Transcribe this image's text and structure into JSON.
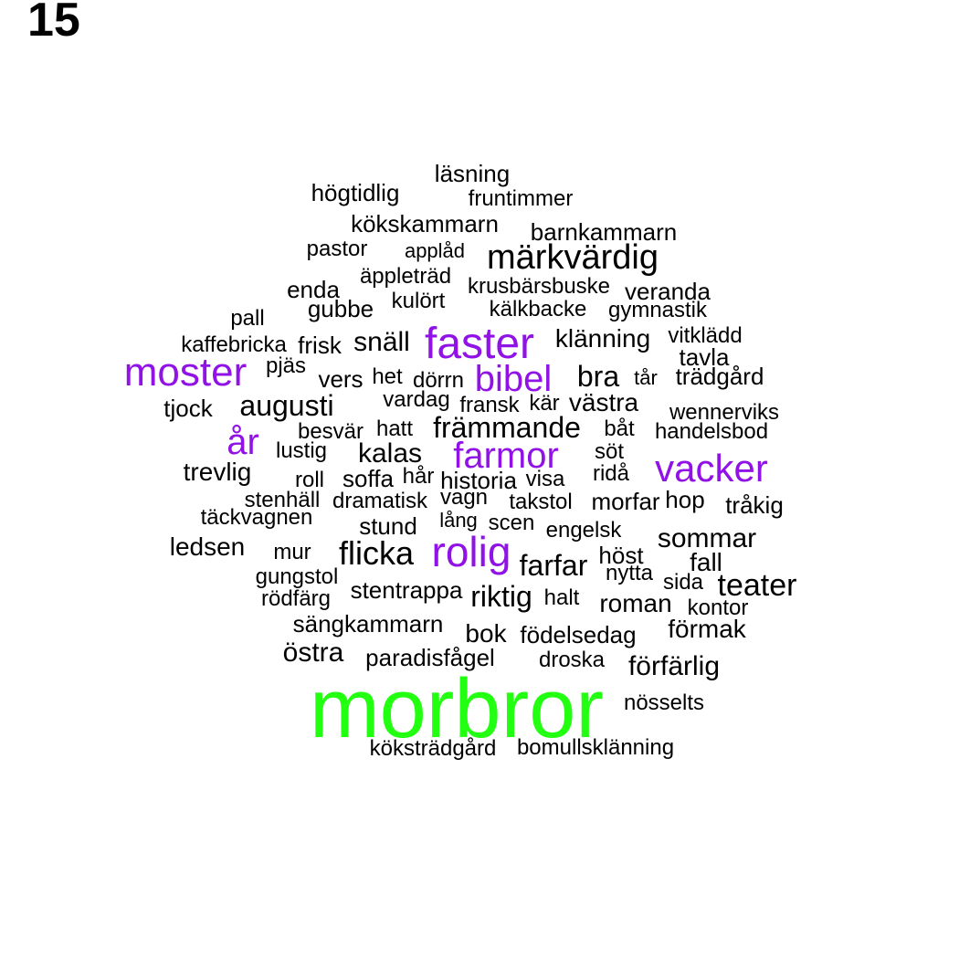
{
  "panel_label": "15",
  "colors": {
    "default": "#000000",
    "mid": "#9012e6",
    "top": "#22ff11"
  },
  "words": [
    {
      "text": "läsning",
      "level": "default"
    },
    {
      "text": "högtidlig",
      "level": "default"
    },
    {
      "text": "fruntimmer",
      "level": "default"
    },
    {
      "text": "kökskammarn",
      "level": "default"
    },
    {
      "text": "barnkammarn",
      "level": "default"
    },
    {
      "text": "pastor",
      "level": "default"
    },
    {
      "text": "applåd",
      "level": "default"
    },
    {
      "text": "märkvärdig",
      "level": "default"
    },
    {
      "text": "äppleträd",
      "level": "default"
    },
    {
      "text": "enda",
      "level": "default"
    },
    {
      "text": "krusbärsbuske",
      "level": "default"
    },
    {
      "text": "veranda",
      "level": "default"
    },
    {
      "text": "gubbe",
      "level": "default"
    },
    {
      "text": "kulört",
      "level": "default"
    },
    {
      "text": "kälkbacke",
      "level": "default"
    },
    {
      "text": "gymnastik",
      "level": "default"
    },
    {
      "text": "pall",
      "level": "default"
    },
    {
      "text": "faster",
      "level": "mid"
    },
    {
      "text": "klänning",
      "level": "default"
    },
    {
      "text": "vitklädd",
      "level": "default"
    },
    {
      "text": "kaffebricka",
      "level": "default"
    },
    {
      "text": "frisk",
      "level": "default"
    },
    {
      "text": "snäll",
      "level": "default"
    },
    {
      "text": "tavla",
      "level": "default"
    },
    {
      "text": "moster",
      "level": "mid"
    },
    {
      "text": "pjäs",
      "level": "default"
    },
    {
      "text": "bibel",
      "level": "mid"
    },
    {
      "text": "vers",
      "level": "default"
    },
    {
      "text": "het",
      "level": "default"
    },
    {
      "text": "dörrn",
      "level": "default"
    },
    {
      "text": "bra",
      "level": "default"
    },
    {
      "text": "tår",
      "level": "default"
    },
    {
      "text": "trädgård",
      "level": "default"
    },
    {
      "text": "tjock",
      "level": "default"
    },
    {
      "text": "augusti",
      "level": "default"
    },
    {
      "text": "vardag",
      "level": "default"
    },
    {
      "text": "fransk",
      "level": "default"
    },
    {
      "text": "kär",
      "level": "default"
    },
    {
      "text": "västra",
      "level": "default"
    },
    {
      "text": "wennerviks",
      "level": "default"
    },
    {
      "text": "år",
      "level": "mid"
    },
    {
      "text": "besvär",
      "level": "default"
    },
    {
      "text": "hatt",
      "level": "default"
    },
    {
      "text": "främmande",
      "level": "default"
    },
    {
      "text": "båt",
      "level": "default"
    },
    {
      "text": "handelsbod",
      "level": "default"
    },
    {
      "text": "lustig",
      "level": "default"
    },
    {
      "text": "kalas",
      "level": "default"
    },
    {
      "text": "farmor",
      "level": "mid"
    },
    {
      "text": "söt",
      "level": "default"
    },
    {
      "text": "vacker",
      "level": "mid"
    },
    {
      "text": "trevlig",
      "level": "default"
    },
    {
      "text": "roll",
      "level": "default"
    },
    {
      "text": "soffa",
      "level": "default"
    },
    {
      "text": "hår",
      "level": "default"
    },
    {
      "text": "historia",
      "level": "default"
    },
    {
      "text": "visa",
      "level": "default"
    },
    {
      "text": "ridå",
      "level": "default"
    },
    {
      "text": "stenhäll",
      "level": "default"
    },
    {
      "text": "dramatisk",
      "level": "default"
    },
    {
      "text": "vagn",
      "level": "default"
    },
    {
      "text": "takstol",
      "level": "default"
    },
    {
      "text": "morfar",
      "level": "default"
    },
    {
      "text": "hop",
      "level": "default"
    },
    {
      "text": "tråkig",
      "level": "default"
    },
    {
      "text": "täckvagnen",
      "level": "default"
    },
    {
      "text": "stund",
      "level": "default"
    },
    {
      "text": "lång",
      "level": "default"
    },
    {
      "text": "scen",
      "level": "default"
    },
    {
      "text": "engelsk",
      "level": "default"
    },
    {
      "text": "sommar",
      "level": "default"
    },
    {
      "text": "ledsen",
      "level": "default"
    },
    {
      "text": "mur",
      "level": "default"
    },
    {
      "text": "flicka",
      "level": "default"
    },
    {
      "text": "rolig",
      "level": "mid"
    },
    {
      "text": "farfar",
      "level": "default"
    },
    {
      "text": "höst",
      "level": "default"
    },
    {
      "text": "fall",
      "level": "default"
    },
    {
      "text": "gungstol",
      "level": "default"
    },
    {
      "text": "nytta",
      "level": "default"
    },
    {
      "text": "sida",
      "level": "default"
    },
    {
      "text": "teater",
      "level": "default"
    },
    {
      "text": "rödfärg",
      "level": "default"
    },
    {
      "text": "stentrappa",
      "level": "default"
    },
    {
      "text": "riktig",
      "level": "default"
    },
    {
      "text": "halt",
      "level": "default"
    },
    {
      "text": "roman",
      "level": "default"
    },
    {
      "text": "kontor",
      "level": "default"
    },
    {
      "text": "sängkammarn",
      "level": "default"
    },
    {
      "text": "bok",
      "level": "default"
    },
    {
      "text": "födelsedag",
      "level": "default"
    },
    {
      "text": "förmak",
      "level": "default"
    },
    {
      "text": "östra",
      "level": "default"
    },
    {
      "text": "paradisfågel",
      "level": "default"
    },
    {
      "text": "droska",
      "level": "default"
    },
    {
      "text": "förfärlig",
      "level": "default"
    },
    {
      "text": "morbror",
      "level": "top"
    },
    {
      "text": "nösselts",
      "level": "default"
    },
    {
      "text": "köksträdgård",
      "level": "default"
    },
    {
      "text": "bomullsklänning",
      "level": "default"
    }
  ]
}
